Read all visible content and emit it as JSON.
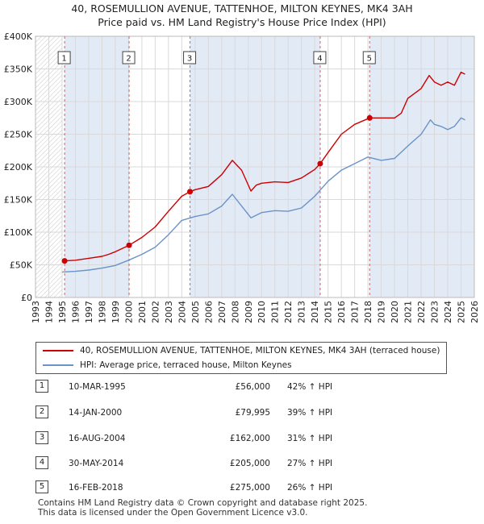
{
  "title_line1": "40, ROSEMULLION AVENUE, TATTENHOE, MILTON KEYNES, MK4 3AH",
  "title_line2": "Price paid vs. HM Land Registry's House Price Index (HPI)",
  "colors": {
    "property": "#cc0000",
    "hpi": "#6a93c8",
    "shade": "#dde6f5"
  },
  "chart_data": {
    "type": "line",
    "title": "40, ROSEMULLION AVENUE, TATTENHOE, MILTON KEYNES, MK4 3AH",
    "xlim": [
      1993,
      2026
    ],
    "ylim": [
      0,
      400000
    ],
    "xticks": [
      "1993",
      "1994",
      "1995",
      "1996",
      "1997",
      "1998",
      "1999",
      "2000",
      "2001",
      "2002",
      "2003",
      "2004",
      "2005",
      "2006",
      "2007",
      "2008",
      "2009",
      "2010",
      "2011",
      "2012",
      "2013",
      "2014",
      "2015",
      "2016",
      "2017",
      "2018",
      "2019",
      "2020",
      "2021",
      "2022",
      "2023",
      "2024",
      "2025",
      "2026"
    ],
    "yticks": [
      {
        "value": 0,
        "label": "£0"
      },
      {
        "value": 50000,
        "label": "£50K"
      },
      {
        "value": 100000,
        "label": "£100K"
      },
      {
        "value": 150000,
        "label": "£150K"
      },
      {
        "value": 200000,
        "label": "£200K"
      },
      {
        "value": 250000,
        "label": "£250K"
      },
      {
        "value": 300000,
        "label": "£300K"
      },
      {
        "value": 350000,
        "label": "£350K"
      },
      {
        "value": 400000,
        "label": "£400K"
      }
    ],
    "series": [
      {
        "name": "40, ROSEMULLION AVENUE, TATTENHOE, MILTON KEYNES, MK4 3AH (terraced house)",
        "x": [
          1995.19,
          1996,
          1997,
          1998,
          1998.5,
          1999,
          2000.04,
          2001,
          2002,
          2003,
          2004,
          2004.62,
          2005,
          2006,
          2007,
          2007.8,
          2008.5,
          2009.2,
          2009.6,
          2010,
          2011,
          2012,
          2013,
          2014,
          2014.41,
          2015,
          2016,
          2017,
          2018.13,
          2019,
          2020,
          2020.5,
          2021,
          2022,
          2022.6,
          2023,
          2023.5,
          2024,
          2024.5,
          2025,
          2025.3
        ],
        "y": [
          56000,
          57000,
          60000,
          63000,
          66000,
          70000,
          79995,
          92000,
          108000,
          132000,
          155000,
          162000,
          165000,
          170000,
          188000,
          210000,
          195000,
          163000,
          172000,
          175000,
          177000,
          176000,
          183000,
          196000,
          205000,
          222000,
          250000,
          265000,
          275000,
          275000,
          275000,
          282000,
          305000,
          320000,
          340000,
          330000,
          325000,
          330000,
          325000,
          345000,
          342000
        ]
      },
      {
        "name": "HPI: Average price, terraced house, Milton Keynes",
        "x": [
          1995,
          1996,
          1997,
          1998,
          1999,
          2000,
          2001,
          2002,
          2003,
          2004,
          2005,
          2006,
          2007,
          2007.8,
          2008.5,
          2009.2,
          2010,
          2011,
          2012,
          2013,
          2014,
          2015,
          2016,
          2017,
          2018,
          2019,
          2020,
          2021,
          2022,
          2022.7,
          2023,
          2023.5,
          2024,
          2024.5,
          2025,
          2025.3
        ],
        "y": [
          39000,
          40000,
          42000,
          45000,
          49000,
          57000,
          66000,
          77000,
          96000,
          118000,
          124000,
          128000,
          140000,
          158000,
          140000,
          122000,
          130000,
          133000,
          132000,
          137000,
          155000,
          178000,
          195000,
          205000,
          215000,
          210000,
          213000,
          232000,
          250000,
          272000,
          265000,
          262000,
          257000,
          262000,
          275000,
          272000
        ]
      }
    ],
    "sales": [
      {
        "label": "1",
        "x": 1995.19,
        "price": 56000
      },
      {
        "label": "2",
        "x": 2000.04,
        "price": 79995
      },
      {
        "label": "3",
        "x": 2004.62,
        "price": 162000
      },
      {
        "label": "4",
        "x": 2014.41,
        "price": 205000
      },
      {
        "label": "5",
        "x": 2018.13,
        "price": 275000
      }
    ]
  },
  "legend": {
    "property": "40, ROSEMULLION AVENUE, TATTENHOE, MILTON KEYNES, MK4 3AH (terraced house)",
    "hpi": "HPI: Average price, terraced house, Milton Keynes"
  },
  "transactions": [
    {
      "num": "1",
      "date": "10-MAR-1995",
      "price": "£56,000",
      "hpi": "42% ↑ HPI"
    },
    {
      "num": "2",
      "date": "14-JAN-2000",
      "price": "£79,995",
      "hpi": "39% ↑ HPI"
    },
    {
      "num": "3",
      "date": "16-AUG-2004",
      "price": "£162,000",
      "hpi": "31% ↑ HPI"
    },
    {
      "num": "4",
      "date": "30-MAY-2014",
      "price": "£205,000",
      "hpi": "27% ↑ HPI"
    },
    {
      "num": "5",
      "date": "16-FEB-2018",
      "price": "£275,000",
      "hpi": "26% ↑ HPI"
    }
  ],
  "footer_line1": "Contains HM Land Registry data © Crown copyright and database right 2025.",
  "footer_line2": "This data is licensed under the Open Government Licence v3.0."
}
